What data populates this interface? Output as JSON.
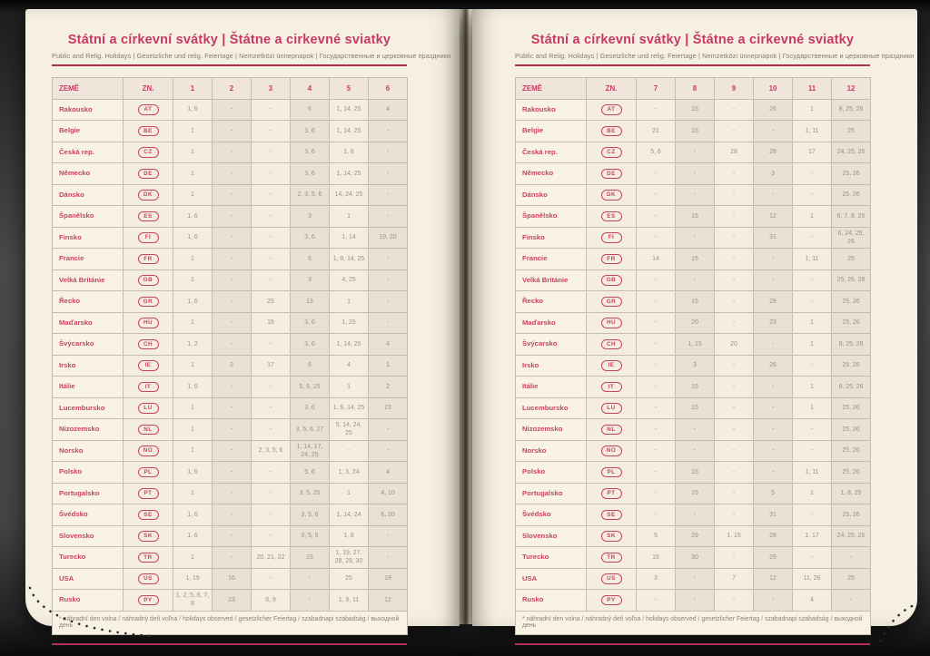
{
  "document": {
    "title": "Státní a církevní svátky | Štátne a cirkevné sviatky",
    "subtitle": "Public and Relig. Holidays | Gesetzliche und relig. Feiertage | Nemzetközi ünnepnapok | Государственные и церковные праздники",
    "footnote": "* náhradní den volna / náhradný deň voľna / holidays observed / gesetzlicher Feiertag / szabadnapi szabadság / выходной день",
    "table_headers": {
      "country": "ZEMĚ",
      "code": "ZN."
    }
  },
  "colors": {
    "accent_pink": "#c73a63",
    "country_pink": "#cc4067",
    "rule_pink": "#b22e56",
    "page_cream": "#f6f0e2",
    "cell_light": "#f4eee0",
    "cell_shaded": "#eae0d4",
    "number_gray": "#9a9186"
  },
  "pages": [
    {
      "side": "left",
      "months": [
        "1",
        "2",
        "3",
        "4",
        "5",
        "6"
      ],
      "rows": [
        {
          "country": "Rakousko",
          "code": "AT",
          "values": [
            "1, 6",
            "-",
            "-",
            "6",
            "1, 14, 25",
            "4"
          ]
        },
        {
          "country": "Belgie",
          "code": "BE",
          "values": [
            "1",
            "-",
            "-",
            "3, 6",
            "1, 14, 25",
            "-"
          ]
        },
        {
          "country": "Česká rep.",
          "code": "CZ",
          "values": [
            "1",
            "-",
            "-",
            "3, 6",
            "1, 8",
            "-"
          ]
        },
        {
          "country": "Německo",
          "code": "DE",
          "values": [
            "1",
            "-",
            "-",
            "3, 6",
            "1, 14, 25",
            "-"
          ]
        },
        {
          "country": "Dánsko",
          "code": "DK",
          "values": [
            "1",
            "-",
            "-",
            "2, 3, 5, 6",
            "14, 24, 25",
            "-"
          ]
        },
        {
          "country": "Španělsko",
          "code": "ES",
          "values": [
            "1, 6",
            "-",
            "-",
            "3",
            "1",
            "-"
          ]
        },
        {
          "country": "Finsko",
          "code": "FI",
          "values": [
            "1, 6",
            "-",
            "-",
            "3, 6",
            "1, 14",
            "19, 20"
          ]
        },
        {
          "country": "Francie",
          "code": "FR",
          "values": [
            "1",
            "-",
            "-",
            "6",
            "1, 8, 14, 25",
            "-"
          ]
        },
        {
          "country": "Velká Británie",
          "code": "GB",
          "values": [
            "1",
            "-",
            "-",
            "3",
            "4, 25",
            "-"
          ]
        },
        {
          "country": "Řecko",
          "code": "GR",
          "values": [
            "1, 6",
            "-",
            "25",
            "13",
            "1",
            "-"
          ]
        },
        {
          "country": "Maďarsko",
          "code": "HU",
          "values": [
            "1",
            "-",
            "15",
            "3, 6",
            "1, 25",
            "-"
          ]
        },
        {
          "country": "Švýcarsko",
          "code": "CH",
          "values": [
            "1, 2",
            "-",
            "-",
            "3, 6",
            "1, 14, 25",
            "4"
          ]
        },
        {
          "country": "Irsko",
          "code": "IE",
          "values": [
            "1",
            "2",
            "17",
            "6",
            "4",
            "1"
          ]
        },
        {
          "country": "Itálie",
          "code": "IT",
          "values": [
            "1, 6",
            "-",
            "-",
            "5, 6, 25",
            "1",
            "2"
          ]
        },
        {
          "country": "Lucembursko",
          "code": "LU",
          "values": [
            "1",
            "-",
            "-",
            "3, 6",
            "1, 9, 14, 25",
            "23"
          ]
        },
        {
          "country": "Nizozemsko",
          "code": "NL",
          "values": [
            "1",
            "-",
            "-",
            "3, 5, 6, 27",
            "5, 14, 24, 25",
            "-"
          ]
        },
        {
          "country": "Norsko",
          "code": "NO",
          "values": [
            "1",
            "-",
            "2, 3, 5, 6",
            "1, 14, 17, 24, 25",
            "-",
            "-"
          ]
        },
        {
          "country": "Polsko",
          "code": "PL",
          "values": [
            "1, 6",
            "-",
            "-",
            "5, 6",
            "1, 3, 24",
            "4"
          ]
        },
        {
          "country": "Portugalsko",
          "code": "PT",
          "values": [
            "1",
            "-",
            "-",
            "3, 5, 25",
            "1",
            "4, 10"
          ]
        },
        {
          "country": "Švédsko",
          "code": "SE",
          "values": [
            "1, 6",
            "-",
            "-",
            "3, 5, 6",
            "1, 14, 24",
            "6, 20"
          ]
        },
        {
          "country": "Slovensko",
          "code": "SK",
          "values": [
            "1, 6",
            "-",
            "-",
            "3, 5, 6",
            "1, 8",
            "-"
          ]
        },
        {
          "country": "Turecko",
          "code": "TR",
          "values": [
            "1",
            "-",
            "20, 21, 22",
            "23",
            "1, 19, 27, 28, 29, 30",
            "-"
          ]
        },
        {
          "country": "USA",
          "code": "US",
          "values": [
            "1, 19",
            "16",
            "-",
            "-",
            "25",
            "19"
          ]
        },
        {
          "country": "Rusko",
          "code": "PY",
          "values": [
            "1, 2, 5, 6, 7, 8",
            "23",
            "8, 9",
            "-",
            "1, 9, 11",
            "12"
          ]
        }
      ]
    },
    {
      "side": "right",
      "months": [
        "7",
        "8",
        "9",
        "10",
        "11",
        "12"
      ],
      "rows": [
        {
          "country": "Rakousko",
          "code": "AT",
          "values": [
            "-",
            "15",
            "-",
            "26",
            "1",
            "8, 25, 26"
          ]
        },
        {
          "country": "Belgie",
          "code": "BE",
          "values": [
            "21",
            "15",
            "-",
            "-",
            "1, 11",
            "25"
          ]
        },
        {
          "country": "Česká rep.",
          "code": "CZ",
          "values": [
            "5, 6",
            "-",
            "28",
            "28",
            "17",
            "24, 25, 26"
          ]
        },
        {
          "country": "Německo",
          "code": "DE",
          "values": [
            "-",
            "-",
            "-",
            "3",
            "-",
            "25, 26"
          ]
        },
        {
          "country": "Dánsko",
          "code": "DK",
          "values": [
            "-",
            "-",
            "-",
            "-",
            "-",
            "25, 26"
          ]
        },
        {
          "country": "Španělsko",
          "code": "ES",
          "values": [
            "-",
            "15",
            "-",
            "12",
            "1",
            "6, 7, 8, 25"
          ]
        },
        {
          "country": "Finsko",
          "code": "FI",
          "values": [
            "-",
            "-",
            "-",
            "31",
            "-",
            "6, 24, 25, 26"
          ]
        },
        {
          "country": "Francie",
          "code": "FR",
          "values": [
            "14",
            "15",
            "-",
            "-",
            "1, 11",
            "25"
          ]
        },
        {
          "country": "Velká Británie",
          "code": "GB",
          "values": [
            "-",
            "-",
            "-",
            "-",
            "-",
            "25, 26, 28"
          ]
        },
        {
          "country": "Řecko",
          "code": "GR",
          "values": [
            "-",
            "15",
            "-",
            "28",
            "-",
            "25, 26"
          ]
        },
        {
          "country": "Maďarsko",
          "code": "HU",
          "values": [
            "-",
            "20",
            "-",
            "23",
            "1",
            "25, 26"
          ]
        },
        {
          "country": "Švýcarsko",
          "code": "CH",
          "values": [
            "-",
            "1, 15",
            "20",
            "-",
            "1",
            "8, 25, 26"
          ]
        },
        {
          "country": "Irsko",
          "code": "IE",
          "values": [
            "-",
            "3",
            "-",
            "26",
            "-",
            "25, 26"
          ]
        },
        {
          "country": "Itálie",
          "code": "IT",
          "values": [
            "-",
            "15",
            "-",
            "-",
            "1",
            "8, 25, 26"
          ]
        },
        {
          "country": "Lucembursko",
          "code": "LU",
          "values": [
            "-",
            "15",
            "-",
            "-",
            "1",
            "25, 26"
          ]
        },
        {
          "country": "Nizozemsko",
          "code": "NL",
          "values": [
            "-",
            "-",
            "-",
            "-",
            "-",
            "25, 26"
          ]
        },
        {
          "country": "Norsko",
          "code": "NO",
          "values": [
            "-",
            "-",
            "-",
            "-",
            "-",
            "25, 26"
          ]
        },
        {
          "country": "Polsko",
          "code": "PL",
          "values": [
            "-",
            "15",
            "-",
            "-",
            "1, 11",
            "25, 26"
          ]
        },
        {
          "country": "Portugalsko",
          "code": "PT",
          "values": [
            "-",
            "15",
            "-",
            "5",
            "1",
            "1, 8, 25"
          ]
        },
        {
          "country": "Švédsko",
          "code": "SE",
          "values": [
            "-",
            "-",
            "-",
            "31",
            "-",
            "25, 26"
          ]
        },
        {
          "country": "Slovensko",
          "code": "SK",
          "values": [
            "5",
            "29",
            "1, 15",
            "28",
            "1, 17",
            "24, 25, 26"
          ]
        },
        {
          "country": "Turecko",
          "code": "TR",
          "values": [
            "15",
            "30",
            "-",
            "29",
            "-",
            "-"
          ]
        },
        {
          "country": "USA",
          "code": "US",
          "values": [
            "3",
            "-",
            "7",
            "12",
            "11, 26",
            "25"
          ]
        },
        {
          "country": "Rusko",
          "code": "PY",
          "values": [
            "-",
            "-",
            "-",
            "-",
            "4",
            "-"
          ]
        }
      ]
    }
  ]
}
